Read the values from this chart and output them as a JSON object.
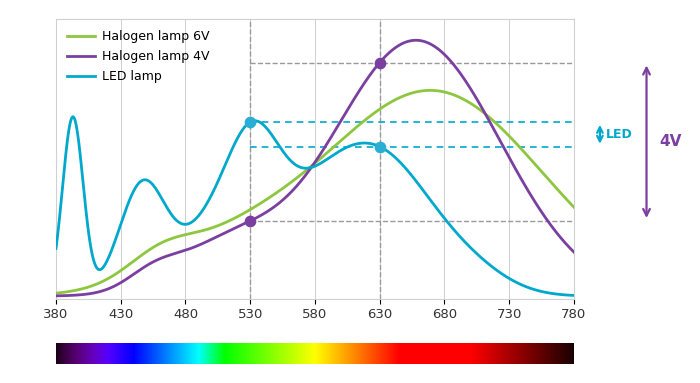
{
  "xlim": [
    380,
    780
  ],
  "ylim": [
    0,
    1.05
  ],
  "xticks": [
    380,
    430,
    480,
    530,
    580,
    630,
    680,
    730,
    780
  ],
  "colors": {
    "halogen6v": "#8dc63f",
    "halogen4v": "#7b3fa0",
    "led": "#00a8cc"
  },
  "legend": [
    "Halogen lamp 6V",
    "Halogen lamp 4V",
    "LED lamp"
  ],
  "dot_color_4v": "#7b3fa0",
  "dot_color_led": "#2baed4",
  "grid_color": "#d0d0d0",
  "background_color": "#ffffff",
  "annotation_label_led": "LED",
  "annotation_label_4v": "4V"
}
